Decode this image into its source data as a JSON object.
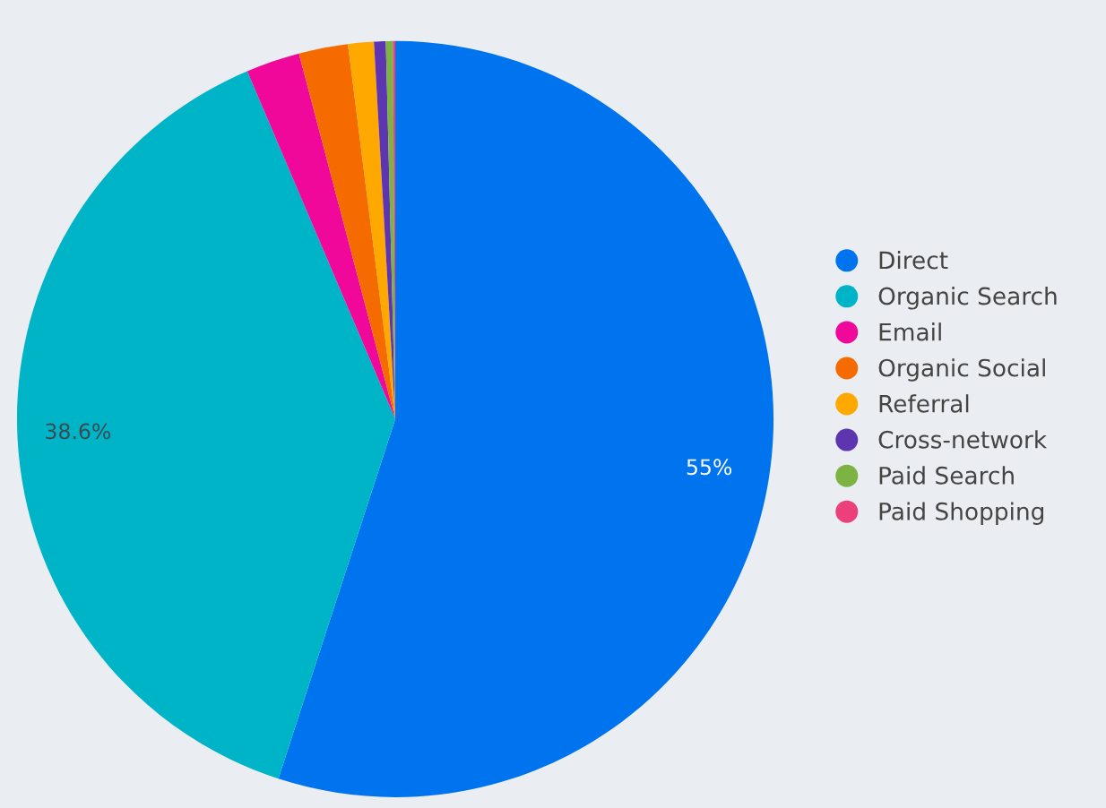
{
  "chart_data": {
    "type": "pie",
    "categories": [
      "Direct",
      "Organic Search",
      "Email",
      "Organic Social",
      "Referral",
      "Cross-network",
      "Paid Search",
      "Paid Shopping"
    ],
    "values": [
      55,
      38.6,
      2.3,
      2.1,
      1.1,
      0.5,
      0.3,
      0.1
    ],
    "colors": [
      "#0073ee",
      "#00b4c8",
      "#f0089a",
      "#f56b00",
      "#ffa800",
      "#5e35b1",
      "#7cb342",
      "#ec407a"
    ],
    "value_labels": [
      "55%",
      "38.6%",
      null,
      null,
      null,
      null,
      null,
      null
    ],
    "legend": "right"
  }
}
